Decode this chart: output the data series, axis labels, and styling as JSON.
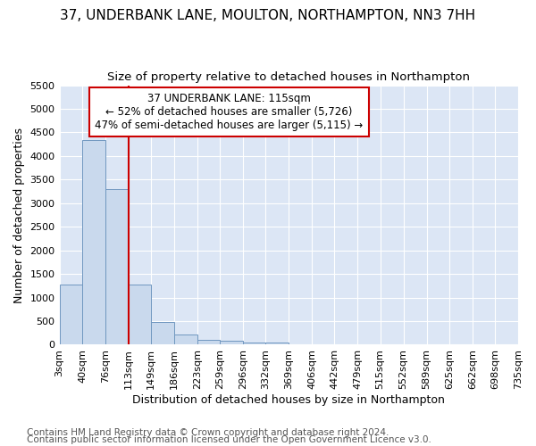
{
  "title": "37, UNDERBANK LANE, MOULTON, NORTHAMPTON, NN3 7HH",
  "subtitle": "Size of property relative to detached houses in Northampton",
  "xlabel": "Distribution of detached houses by size in Northampton",
  "ylabel": "Number of detached properties",
  "footnote1": "Contains HM Land Registry data © Crown copyright and database right 2024.",
  "footnote2": "Contains public sector information licensed under the Open Government Licence v3.0.",
  "annotation_line1": "37 UNDERBANK LANE: 115sqm",
  "annotation_line2": "← 52% of detached houses are smaller (5,726)",
  "annotation_line3": "47% of semi-detached houses are larger (5,115) →",
  "bar_edges": [
    3,
    40,
    76,
    113,
    149,
    186,
    223,
    259,
    296,
    332,
    369,
    406,
    442,
    479,
    515,
    552,
    589,
    625,
    662,
    698,
    735
  ],
  "bar_heights": [
    1270,
    4330,
    3300,
    1280,
    490,
    215,
    95,
    80,
    55,
    45,
    0,
    0,
    0,
    0,
    0,
    0,
    0,
    0,
    0,
    0
  ],
  "bar_color": "#c9d9ed",
  "bar_edge_color": "#7097c0",
  "red_line_x": 113,
  "ylim": [
    0,
    5500
  ],
  "yticks": [
    0,
    500,
    1000,
    1500,
    2000,
    2500,
    3000,
    3500,
    4000,
    4500,
    5000,
    5500
  ],
  "fig_background_color": "#ffffff",
  "plot_background_color": "#dce6f5",
  "grid_color": "#ffffff",
  "annotation_box_color": "#ffffff",
  "annotation_box_edge_color": "#cc0000",
  "red_line_color": "#cc0000",
  "title_fontsize": 11,
  "subtitle_fontsize": 9.5,
  "axis_label_fontsize": 9,
  "tick_fontsize": 8,
  "annotation_fontsize": 8.5,
  "footnote_fontsize": 7.5
}
